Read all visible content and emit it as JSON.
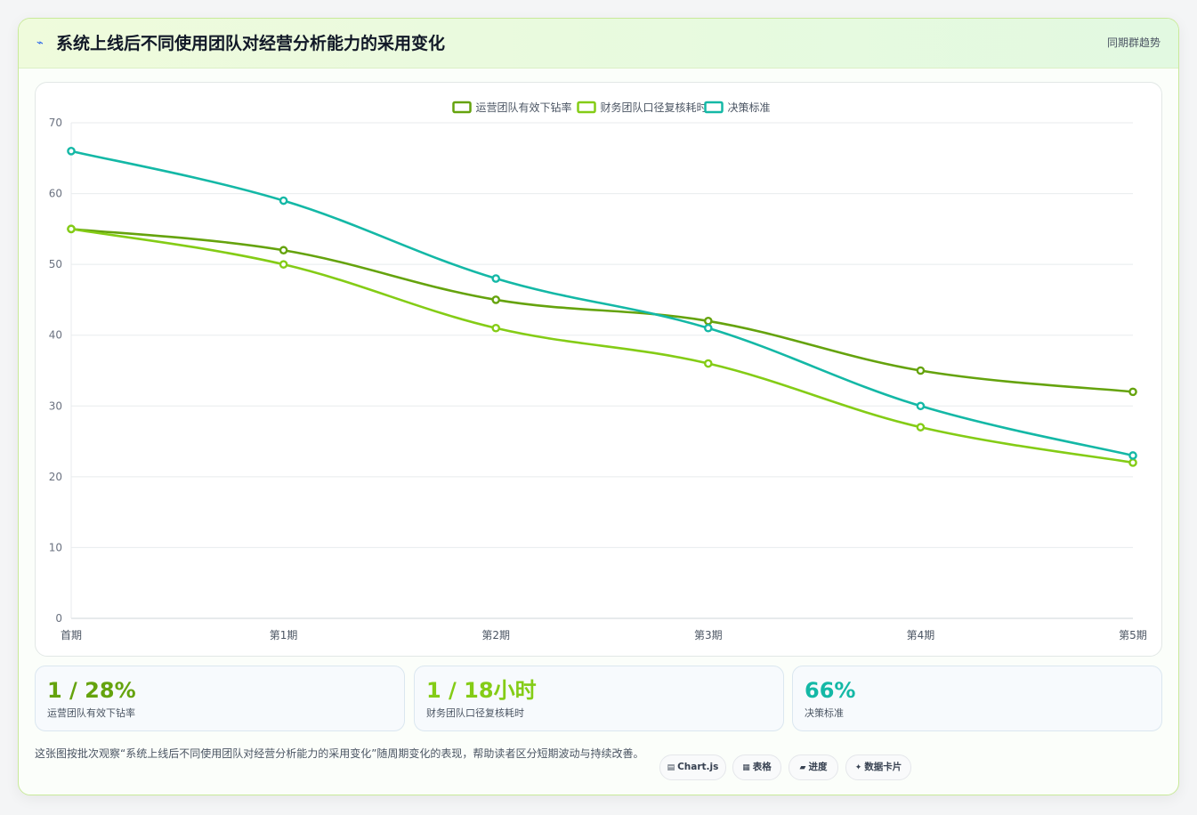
{
  "header": {
    "icon": "lightning-icon",
    "title": "系统上线后不同使用团队对经营分析能力的采用变化",
    "tag": "同期群趋势"
  },
  "chart_data": {
    "type": "line",
    "categories": [
      "首期",
      "第1期",
      "第2期",
      "第3期",
      "第4期",
      "第5期"
    ],
    "series": [
      {
        "name": "运营团队有效下钻率",
        "color": "#65a30d",
        "values": [
          55,
          52,
          45,
          42,
          35,
          32
        ]
      },
      {
        "name": "财务团队口径复核耗时",
        "color": "#84cc16",
        "values": [
          55,
          50,
          41,
          36,
          27,
          22
        ]
      },
      {
        "name": "决策标准",
        "color": "#14b8a6",
        "values": [
          66,
          59,
          48,
          41,
          30,
          23
        ]
      }
    ],
    "ylim": [
      0,
      70
    ],
    "yticks": [
      0,
      10,
      20,
      30,
      40,
      50,
      60,
      70
    ],
    "xlabel": "",
    "ylabel": "",
    "grid": true,
    "legend": "top-center"
  },
  "stats": [
    {
      "value": "1 / 28%",
      "label": "运营团队有效下钻率",
      "color": "#65a30d"
    },
    {
      "value": "1 / 18小时",
      "label": "财务团队口径复核耗时",
      "color": "#84cc16"
    },
    {
      "value": "66%",
      "label": "决策标准",
      "color": "#14b8a6"
    }
  ],
  "footer": {
    "text": "这张图按批次观察“系统上线后不同使用团队对经营分析能力的采用变化”随周期变化的表现，帮助读者区分短期波动与持续改善。",
    "tags": [
      {
        "icon": "▤",
        "icon_name": "chartjs-icon",
        "label": "Chart.js"
      },
      {
        "icon": "▦",
        "icon_name": "table-icon",
        "label": "表格"
      },
      {
        "icon": "▰",
        "icon_name": "progress-icon",
        "label": "进度"
      },
      {
        "icon": "✦",
        "icon_name": "data-card-icon",
        "label": "数据卡片"
      }
    ]
  }
}
